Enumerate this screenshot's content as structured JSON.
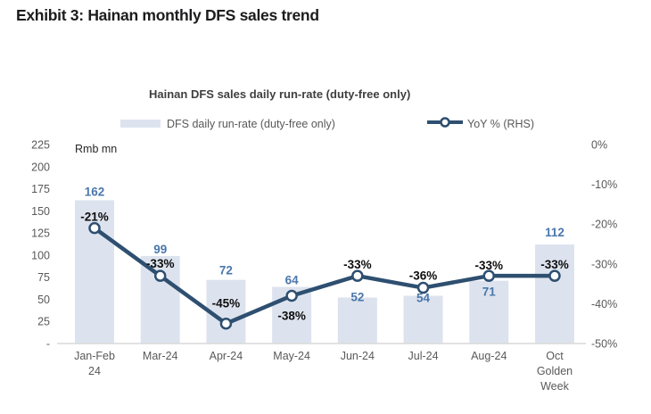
{
  "exhibit_title": "Exhibit 3: Hainan monthly DFS sales trend",
  "chart": {
    "title": "Hainan DFS sales daily run-rate (duty-free only)",
    "unit_label": "Rmb mn",
    "legend": [
      {
        "label": "DFS daily run-rate (duty-free only)"
      },
      {
        "label": "YoY % (RHS)"
      }
    ],
    "colors": {
      "bar": "#dde3ee",
      "line": "#2e4f70",
      "value_label": "#4a77ac",
      "pct_label": "#0d0d0d",
      "axis_text": "#595959",
      "unit_text": "#262626",
      "baseline": "#d9d9d9"
    }
  },
  "chart_data": {
    "type": "bar",
    "title": "Hainan DFS sales daily run-rate (duty-free only)",
    "categories": [
      "Jan-Feb 24",
      "Mar-24",
      "Apr-24",
      "May-24",
      "Jun-24",
      "Jul-24",
      "Aug-24",
      "Oct Golden Week"
    ],
    "series": [
      {
        "name": "DFS daily run-rate (duty-free only)",
        "type": "bar",
        "axis": "left",
        "values": [
          162,
          99,
          72,
          64,
          52,
          54,
          71,
          112
        ]
      },
      {
        "name": "YoY % (RHS)",
        "type": "line",
        "axis": "right",
        "values": [
          -21,
          -33,
          -45,
          -38,
          -33,
          -36,
          -33,
          -33
        ]
      }
    ],
    "left_axis": {
      "label": "Rmb mn",
      "min": 0,
      "max": 225,
      "ticks": [
        "225",
        "200",
        "175",
        "150",
        "125",
        "100",
        "75",
        "50",
        "25",
        "-"
      ]
    },
    "right_axis": {
      "min": -50,
      "max": 0,
      "ticks": [
        "0%",
        "-10%",
        "-20%",
        "-30%",
        "-40%",
        "-50%"
      ]
    },
    "data_labels": {
      "bar": [
        "162",
        "99",
        "72",
        "64",
        "52",
        "54",
        "71",
        "112"
      ],
      "pct": [
        "-21%",
        "-33%",
        "-45%",
        "-38%",
        "-33%",
        "-36%",
        "-33%",
        "-33%"
      ]
    },
    "layout": {
      "grid": false,
      "legend_position": "top",
      "x_label_lines": [
        [
          "Jan-Feb",
          "24"
        ],
        [
          "Mar-24"
        ],
        [
          "Apr-24"
        ],
        [
          "May-24"
        ],
        [
          "Jun-24"
        ],
        [
          "Jul-24"
        ],
        [
          "Aug-24"
        ],
        [
          "Oct",
          "Golden",
          "Week"
        ]
      ],
      "bar_label_dy": [
        -5,
        -3,
        -6,
        -3,
        4,
        7,
        17,
        -9
      ],
      "pct_label_dy": [
        -8,
        -9,
        -18,
        27,
        -8,
        -9,
        -7,
        -8
      ]
    }
  }
}
